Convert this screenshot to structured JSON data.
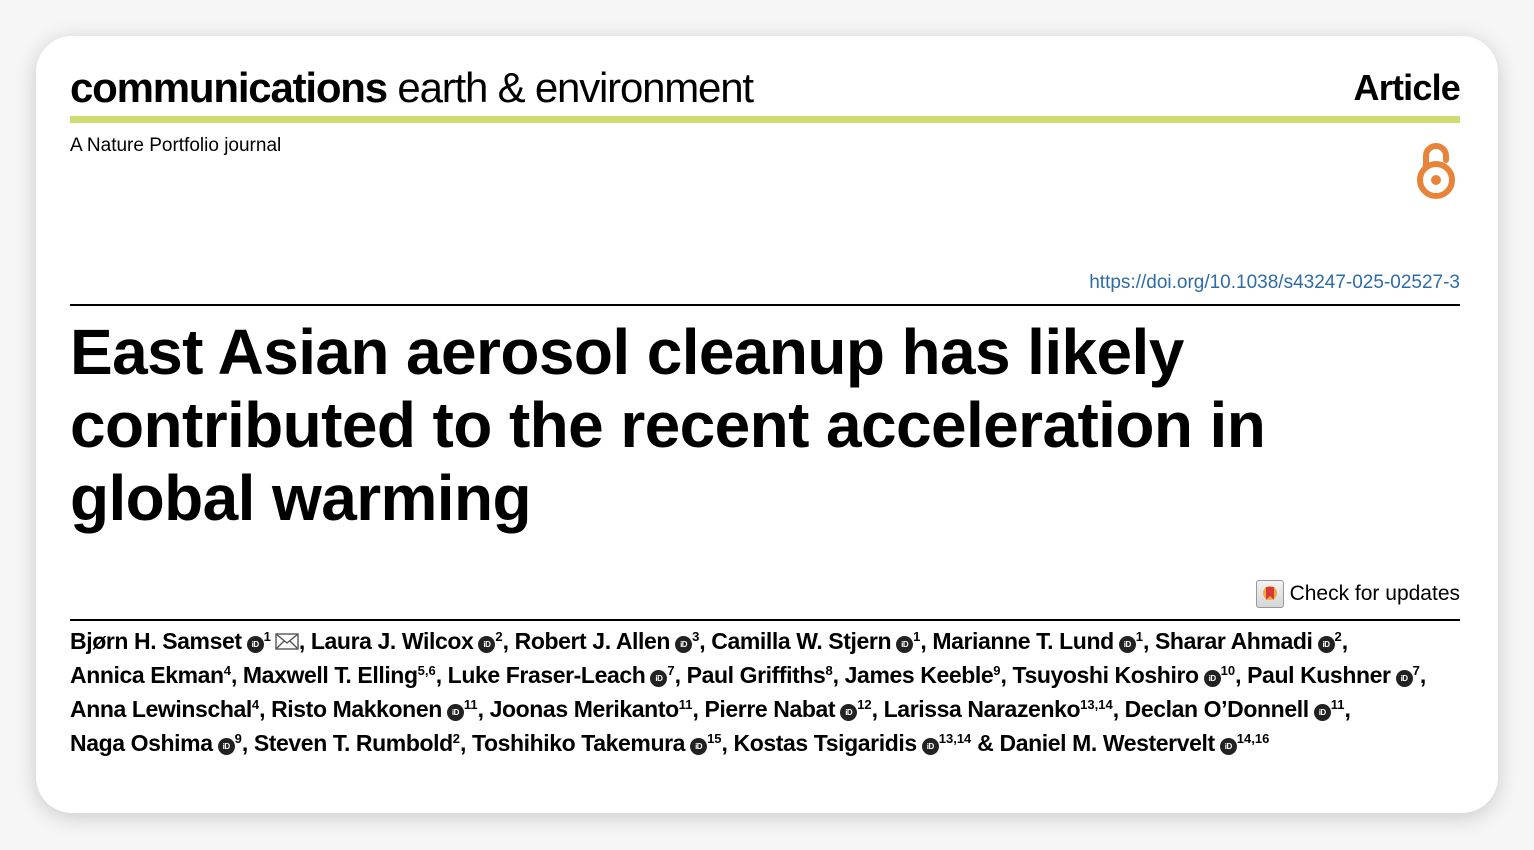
{
  "journal": {
    "brand": "communications",
    "subject": "earth & environment",
    "tagline": "A Nature Portfolio journal",
    "article_type": "Article"
  },
  "doi": "https://doi.org/10.1038/s43247-025-02527-3",
  "title": "East Asian aerosol cleanup has likely contributed to the recent acceleration in global warming",
  "updates": {
    "label": "Check for updates"
  },
  "icons": {
    "open_access": "open-access-lock-icon",
    "orcid": "orcid-icon",
    "email": "envelope-icon"
  },
  "colors": {
    "green_rule": "#cfdc6f",
    "doi_link": "#2d6ca5",
    "open_access": "#e8833a"
  },
  "authors": [
    {
      "name": "Bjørn H. Samset",
      "orcid": true,
      "aff": "1",
      "email": true,
      "sep": ", "
    },
    {
      "name": "Laura J. Wilcox",
      "orcid": true,
      "aff": "2",
      "sep": ", "
    },
    {
      "name": "Robert J. Allen",
      "orcid": true,
      "aff": "3",
      "sep": ", "
    },
    {
      "name": "Camilla W. Stjern",
      "orcid": true,
      "aff": "1",
      "sep": ", "
    },
    {
      "name": "Marianne T. Lund",
      "orcid": true,
      "aff": "1",
      "sep": ", "
    },
    {
      "name": "Sharar Ahmadi",
      "orcid": true,
      "aff": "2",
      "sep": ", "
    },
    {
      "name": "Annica Ekman",
      "orcid": false,
      "aff": "4",
      "sep": ", "
    },
    {
      "name": "Maxwell T. Elling",
      "orcid": false,
      "aff": "5,6",
      "sep": ", "
    },
    {
      "name": "Luke Fraser-Leach",
      "orcid": true,
      "aff": "7",
      "sep": ", "
    },
    {
      "name": "Paul Griffiths",
      "orcid": false,
      "aff": "8",
      "sep": ", "
    },
    {
      "name": "James Keeble",
      "orcid": false,
      "aff": "9",
      "sep": ", "
    },
    {
      "name": "Tsuyoshi Koshiro",
      "orcid": true,
      "aff": "10",
      "sep": ", "
    },
    {
      "name": "Paul Kushner",
      "orcid": true,
      "aff": "7",
      "sep": ", "
    },
    {
      "name": "Anna Lewinschal",
      "orcid": false,
      "aff": "4",
      "sep": ", "
    },
    {
      "name": "Risto Makkonen",
      "orcid": true,
      "aff": "11",
      "sep": ", "
    },
    {
      "name": "Joonas Merikanto",
      "orcid": false,
      "aff": "11",
      "sep": ", "
    },
    {
      "name": "Pierre Nabat",
      "orcid": true,
      "aff": "12",
      "sep": ", "
    },
    {
      "name": "Larissa Narazenko",
      "orcid": false,
      "aff": "13,14",
      "sep": ", "
    },
    {
      "name": "Declan O’Donnell",
      "orcid": true,
      "aff": "11",
      "sep": ", "
    },
    {
      "name": "Naga Oshima",
      "orcid": true,
      "aff": "9",
      "sep": ", "
    },
    {
      "name": "Steven T. Rumbold",
      "orcid": false,
      "aff": "2",
      "sep": ", "
    },
    {
      "name": "Toshihiko Takemura",
      "orcid": true,
      "aff": "15",
      "sep": ", "
    },
    {
      "name": "Kostas Tsigaridis",
      "orcid": true,
      "aff": "13,14",
      "sep": " & "
    },
    {
      "name": "Daniel M. Westervelt",
      "orcid": true,
      "aff": "14,16",
      "sep": ""
    }
  ]
}
